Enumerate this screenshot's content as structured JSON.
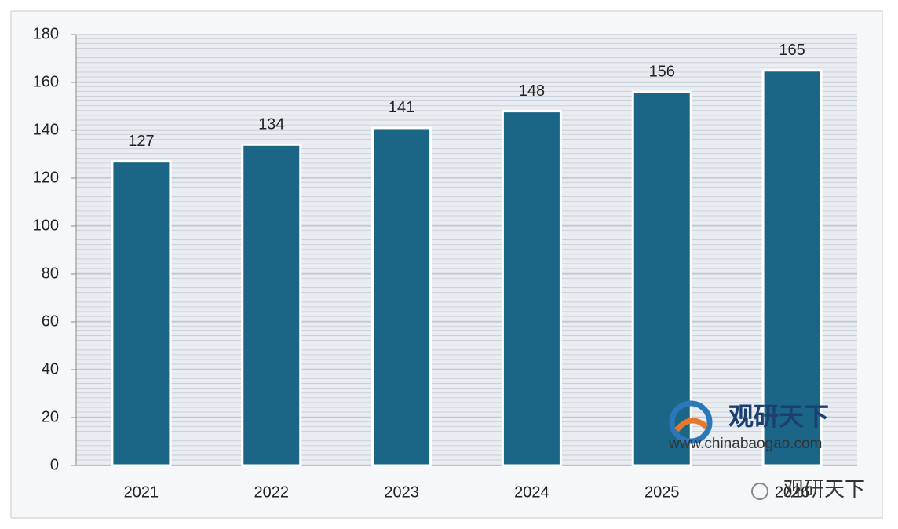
{
  "chart_data": {
    "type": "bar",
    "categories": [
      "2021",
      "2022",
      "2023",
      "2024",
      "2025",
      "2026"
    ],
    "values": [
      127,
      134,
      141,
      148,
      156,
      165
    ],
    "color": "#1b6586",
    "ylim": [
      0,
      180
    ],
    "yticks": [
      0,
      20,
      40,
      60,
      80,
      100,
      120,
      140,
      160,
      180
    ],
    "grid": true
  },
  "watermark": {
    "brand": "观研天下",
    "url": "www.chinabaogao.com",
    "footer": "观研天下"
  }
}
